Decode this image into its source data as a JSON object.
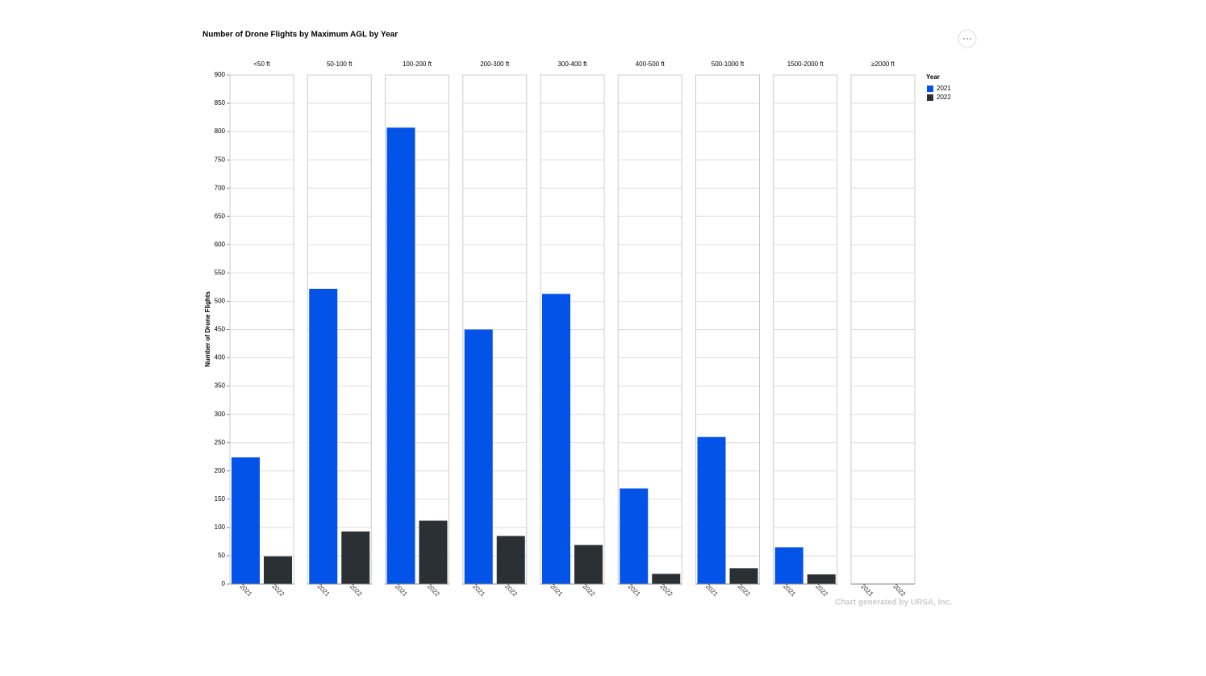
{
  "chart_data": {
    "type": "bar",
    "title": "Number of Drone Flights by Maximum AGL by Year",
    "y_label": "Number of Drone Flights",
    "legend_title": "Year",
    "annotation": "Chart generated by URSA, Inc.",
    "categories": [
      "<50 ft",
      "50-100 ft",
      "100-200 ft",
      "200-300 ft",
      "300-400 ft",
      "400-500 ft",
      "500-1000 ft",
      "1500-2000 ft",
      "≥2000 ft"
    ],
    "series": [
      {
        "name": "2021",
        "color": "#0353e9",
        "values": [
          224,
          522,
          807,
          450,
          513,
          169,
          260,
          65,
          0
        ]
      },
      {
        "name": "2022",
        "color": "#2b3035",
        "values": [
          49,
          93,
          112,
          85,
          69,
          18,
          28,
          17,
          0
        ]
      }
    ],
    "ylim": [
      0,
      900
    ],
    "yticks": [
      0,
      50,
      100,
      150,
      200,
      250,
      300,
      350,
      400,
      450,
      500,
      550,
      600,
      650,
      700,
      750,
      800,
      850,
      900
    ],
    "grid": true
  }
}
